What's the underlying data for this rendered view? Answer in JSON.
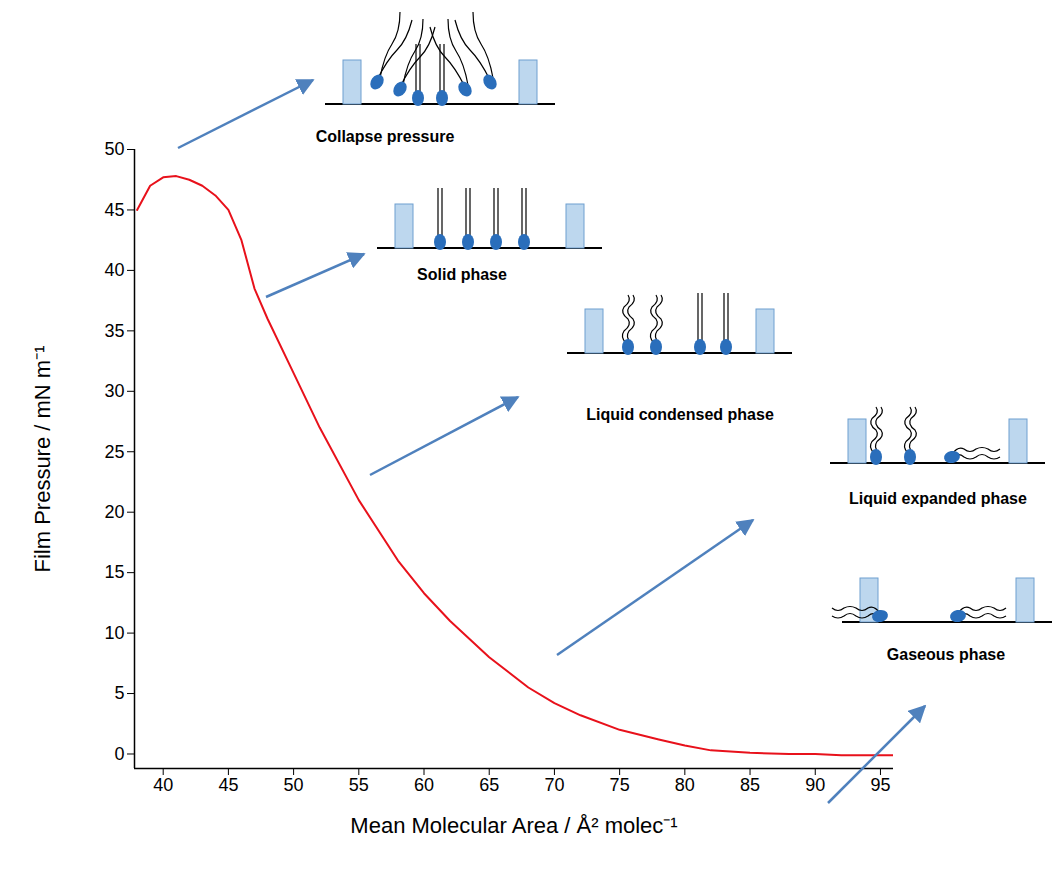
{
  "chart_data": {
    "type": "line",
    "xlabel": "Mean Molecular Area / Å² molec⁻¹",
    "ylabel": "Film Pressure / mN m⁻¹",
    "x": [
      38,
      39,
      40,
      41,
      42,
      43,
      44,
      45,
      46,
      47,
      48,
      50,
      52,
      55,
      58,
      60,
      62,
      65,
      68,
      70,
      72,
      75,
      78,
      80,
      82,
      85,
      88,
      90,
      92,
      96
    ],
    "series": [
      {
        "color": "#e8111b",
        "values": [
          45,
          47,
          47.7,
          47.8,
          47.5,
          47,
          46.2,
          45,
          42.5,
          38.5,
          36,
          31.5,
          27,
          21,
          16,
          13.3,
          11,
          8,
          5.5,
          4.2,
          3.2,
          2,
          1.2,
          0.7,
          0.3,
          0.1,
          0,
          0,
          -0.1,
          -0.1
        ]
      }
    ],
    "xlim": [
      37.8,
      96
    ],
    "ylim": [
      -1.2,
      50
    ],
    "xticks": [
      40,
      45,
      50,
      55,
      60,
      65,
      70,
      75,
      80,
      85,
      90,
      95
    ],
    "yticks": [
      0,
      5,
      10,
      15,
      20,
      25,
      30,
      35,
      40,
      45,
      50
    ],
    "annotations": [
      "Collapse pressure",
      "Solid phase",
      "Liquid condensed phase",
      "Liquid expanded phase",
      "Gaseous phase"
    ]
  }
}
